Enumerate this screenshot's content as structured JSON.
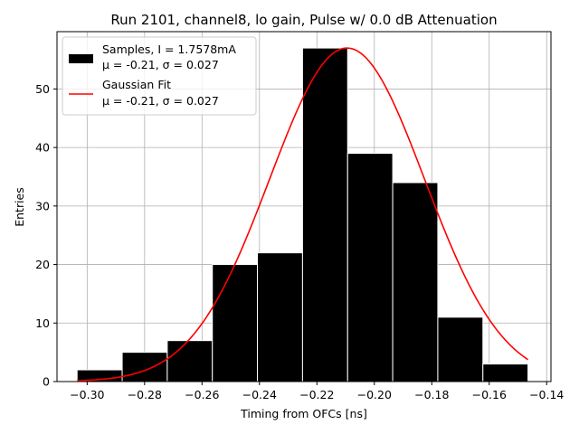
{
  "chart_data": {
    "type": "bar",
    "title": "Run 2101, channel8, lo gain, Pulse w/ 0.0 dB Attenuation",
    "xlabel": "Timing from OFCs [ns]",
    "ylabel": "Entries",
    "xlim": [
      -0.3105,
      -0.1385
    ],
    "ylim": [
      0,
      59.8
    ],
    "xticks": [
      -0.3,
      -0.28,
      -0.26,
      -0.24,
      -0.22,
      -0.2,
      -0.18,
      -0.16,
      -0.14
    ],
    "xtick_labels": [
      "−0.30",
      "−0.28",
      "−0.26",
      "−0.24",
      "−0.22",
      "−0.20",
      "−0.18",
      "−0.16",
      "−0.14"
    ],
    "yticks": [
      0,
      10,
      20,
      30,
      40,
      50
    ],
    "ytick_labels": [
      "0",
      "10",
      "20",
      "30",
      "40",
      "50"
    ],
    "grid": true,
    "legend_position": "top-left",
    "bin_edges": [
      -0.3035,
      -0.2878,
      -0.2721,
      -0.2564,
      -0.2407,
      -0.225,
      -0.2093,
      -0.1936,
      -0.1779,
      -0.1622,
      -0.1465
    ],
    "counts": [
      2,
      5,
      7,
      20,
      22,
      57,
      39,
      34,
      11,
      3
    ],
    "bar_color": "#000000",
    "bar_edge_color": "#ffffff",
    "fit": {
      "type": "gaussian",
      "amplitude": 57,
      "mean": -0.2095,
      "sigma": 0.027,
      "x_range": [
        -0.3035,
        -0.1465
      ],
      "color": "#ff0000"
    },
    "legend": [
      {
        "kind": "bar",
        "color": "#000000",
        "lines": [
          "Samples, I = 1.7578mA",
          "μ = -0.21, σ = 0.027"
        ]
      },
      {
        "kind": "line",
        "color": "#ff0000",
        "lines": [
          "Gaussian Fit",
          "μ = -0.21, σ = 0.027"
        ]
      }
    ]
  }
}
